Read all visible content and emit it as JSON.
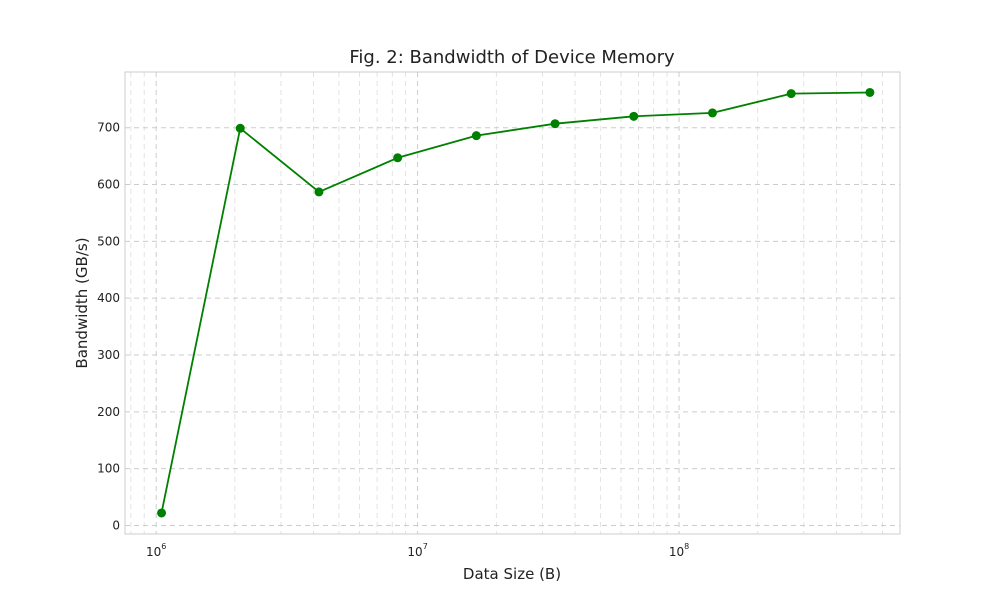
{
  "chart_data": {
    "type": "line",
    "title": "Fig. 2: Bandwidth of Device Memory",
    "xlabel": "Data Size (B)",
    "ylabel": "Bandwidth (GB/s)",
    "x_scale": "log",
    "xlim": [
      760000,
      700000000
    ],
    "ylim": [
      -15,
      798
    ],
    "grid": true,
    "grid_style": "dashed",
    "x_ticks": [
      {
        "value": 1000000,
        "base": "10",
        "exp": "6"
      },
      {
        "value": 10000000,
        "base": "10",
        "exp": "7"
      },
      {
        "value": 100000000,
        "base": "10",
        "exp": "8"
      }
    ],
    "y_ticks": [
      0,
      100,
      200,
      300,
      400,
      500,
      600,
      700
    ],
    "series": [
      {
        "color": "#008000",
        "marker": "circle",
        "x": [
          1048576,
          2097152,
          4194304,
          8388608,
          16777216,
          33554432,
          67108864,
          134217728,
          268435456,
          536870912
        ],
        "y": [
          22,
          699,
          587,
          647,
          686,
          707,
          720,
          726,
          760,
          762
        ]
      }
    ]
  }
}
